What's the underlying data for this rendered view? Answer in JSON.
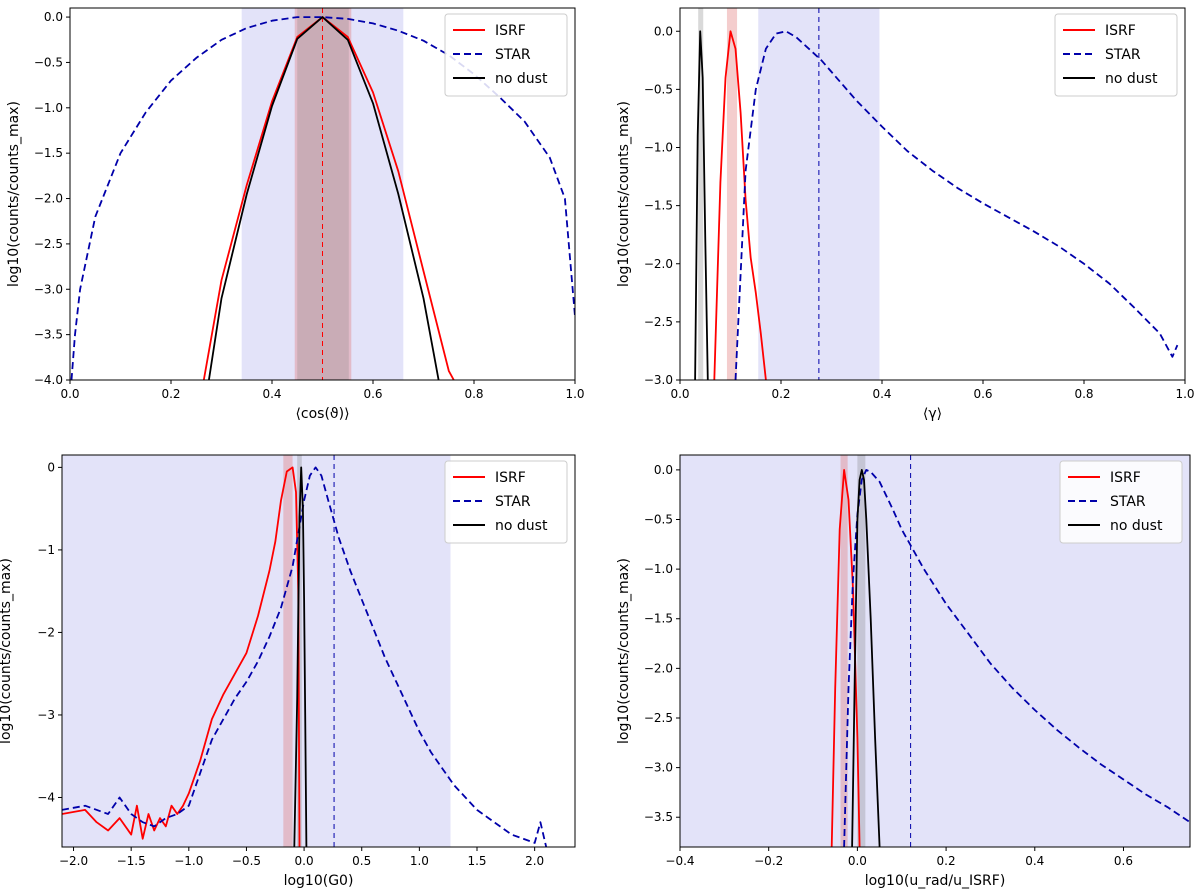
{
  "chart_data": [
    {
      "type": "line",
      "xlabel": "⟨cos(ϑ)⟩",
      "ylabel": "log10(counts/counts_max)",
      "xlim": [
        0.0,
        1.0
      ],
      "ylim": [
        -4.0,
        0.1
      ],
      "xticks": [
        0.0,
        0.2,
        0.4,
        0.6,
        0.8,
        1.0
      ],
      "xtick_labels": [
        "0.0",
        "0.2",
        "0.4",
        "0.6",
        "0.8",
        "1.0"
      ],
      "yticks": [
        0.0,
        -0.5,
        -1.0,
        -1.5,
        -2.0,
        -2.5,
        -3.0,
        -3.5,
        -4.0
      ],
      "ytick_labels": [
        "0.0",
        "−0.5",
        "−1.0",
        "−1.5",
        "−2.0",
        "−2.5",
        "−3.0",
        "−3.5",
        "−4.0"
      ],
      "legend": "top-right",
      "bands": [
        {
          "x0": 0.34,
          "x1": 0.66,
          "color": "#b8b8f0",
          "opacity": 0.4
        },
        {
          "x0": 0.445,
          "x1": 0.557,
          "color": "#e07070",
          "opacity": 0.35
        },
        {
          "x0": 0.45,
          "x1": 0.552,
          "color": "#808080",
          "opacity": 0.25
        }
      ],
      "vlines": [
        {
          "x": 0.5,
          "color": "#0000aa",
          "dash": "5,4"
        },
        {
          "x": 0.5,
          "color": "#ff0000",
          "dash": "5,4"
        }
      ],
      "series": [
        {
          "name": "ISRF",
          "color": "#ff0000",
          "dash": "",
          "x": [
            0.265,
            0.3,
            0.35,
            0.4,
            0.45,
            0.5,
            0.55,
            0.6,
            0.65,
            0.7,
            0.75,
            0.76
          ],
          "y": [
            -4.0,
            -2.9,
            -1.85,
            -0.93,
            -0.22,
            0.0,
            -0.22,
            -0.83,
            -1.7,
            -2.8,
            -3.9,
            -4.0
          ]
        },
        {
          "name": "STAR",
          "color": "#0000aa",
          "dash": "7,4",
          "x": [
            0.003,
            0.01,
            0.02,
            0.05,
            0.1,
            0.15,
            0.2,
            0.25,
            0.3,
            0.35,
            0.4,
            0.45,
            0.5,
            0.55,
            0.6,
            0.65,
            0.7,
            0.75,
            0.8,
            0.85,
            0.9,
            0.95,
            0.98,
            1.0
          ],
          "y": [
            -4.0,
            -3.5,
            -3.0,
            -2.2,
            -1.5,
            -1.05,
            -0.7,
            -0.45,
            -0.25,
            -0.12,
            -0.04,
            0.0,
            0.0,
            -0.02,
            -0.07,
            -0.15,
            -0.26,
            -0.42,
            -0.63,
            -0.88,
            -1.15,
            -1.55,
            -2.0,
            -3.3
          ]
        },
        {
          "name": "no dust",
          "color": "#000000",
          "dash": "",
          "x": [
            0.275,
            0.3,
            0.35,
            0.4,
            0.45,
            0.5,
            0.55,
            0.6,
            0.65,
            0.7,
            0.72,
            0.73
          ],
          "y": [
            -4.0,
            -3.1,
            -1.95,
            -0.98,
            -0.24,
            0.0,
            -0.25,
            -0.95,
            -1.95,
            -3.1,
            -3.7,
            -4.0
          ]
        }
      ]
    },
    {
      "type": "line",
      "xlabel": "⟨γ⟩",
      "ylabel": "log10(counts/counts_max)",
      "xlim": [
        0.0,
        1.0
      ],
      "ylim": [
        -3.0,
        0.2
      ],
      "xticks": [
        0.0,
        0.2,
        0.4,
        0.6,
        0.8,
        1.0
      ],
      "xtick_labels": [
        "0.0",
        "0.2",
        "0.4",
        "0.6",
        "0.8",
        "1.0"
      ],
      "yticks": [
        0.0,
        -0.5,
        -1.0,
        -1.5,
        -2.0,
        -2.5,
        -3.0
      ],
      "ytick_labels": [
        "0.0",
        "−0.5",
        "−1.0",
        "−1.5",
        "−2.0",
        "−2.5",
        "−3.0"
      ],
      "legend": "top-right",
      "bands": [
        {
          "x0": 0.155,
          "x1": 0.395,
          "color": "#b8b8f0",
          "opacity": 0.4
        },
        {
          "x0": 0.093,
          "x1": 0.113,
          "color": "#e07070",
          "opacity": 0.35
        },
        {
          "x0": 0.036,
          "x1": 0.046,
          "color": "#808080",
          "opacity": 0.3
        }
      ],
      "vlines": [
        {
          "x": 0.275,
          "color": "#0000aa",
          "dash": "5,4"
        }
      ],
      "series": [
        {
          "name": "ISRF",
          "color": "#ff0000",
          "dash": "",
          "x": [
            0.068,
            0.08,
            0.09,
            0.1,
            0.11,
            0.12,
            0.13,
            0.14,
            0.15,
            0.16,
            0.17
          ],
          "y": [
            -3.0,
            -1.3,
            -0.4,
            0.0,
            -0.15,
            -0.7,
            -1.45,
            -1.95,
            -2.25,
            -2.6,
            -3.0
          ]
        },
        {
          "name": "STAR",
          "color": "#0000aa",
          "dash": "7,4",
          "x": [
            0.11,
            0.13,
            0.15,
            0.17,
            0.19,
            0.21,
            0.23,
            0.25,
            0.28,
            0.3,
            0.35,
            0.4,
            0.45,
            0.5,
            0.55,
            0.6,
            0.65,
            0.7,
            0.75,
            0.8,
            0.85,
            0.9,
            0.95,
            0.975,
            0.985
          ],
          "y": [
            -3.0,
            -1.2,
            -0.5,
            -0.15,
            -0.02,
            0.0,
            -0.05,
            -0.13,
            -0.25,
            -0.35,
            -0.6,
            -0.82,
            -1.03,
            -1.2,
            -1.35,
            -1.48,
            -1.6,
            -1.72,
            -1.85,
            -2.0,
            -2.17,
            -2.38,
            -2.6,
            -2.8,
            -2.7
          ]
        },
        {
          "name": "no dust",
          "color": "#000000",
          "dash": "",
          "x": [
            0.03,
            0.035,
            0.04,
            0.045,
            0.05,
            0.055
          ],
          "y": [
            -3.0,
            -0.9,
            0.0,
            -0.4,
            -1.8,
            -3.0
          ]
        }
      ]
    },
    {
      "type": "line",
      "xlabel": "log10(G0)",
      "ylabel": "log10(counts/counts_max)",
      "xlim": [
        -2.1,
        2.35
      ],
      "ylim": [
        -4.6,
        0.15
      ],
      "xticks": [
        -2.0,
        -1.5,
        -1.0,
        -0.5,
        0.0,
        0.5,
        1.0,
        1.5,
        2.0
      ],
      "xtick_labels": [
        "−2.0",
        "−1.5",
        "−1.0",
        "−0.5",
        "0.0",
        "0.5",
        "1.0",
        "1.5",
        "2.0"
      ],
      "yticks": [
        0,
        -1,
        -2,
        -3,
        -4
      ],
      "ytick_labels": [
        "0",
        "−1",
        "−2",
        "−3",
        "−4"
      ],
      "legend": "top-right",
      "bands": [
        {
          "x0": -2.1,
          "x1": 1.27,
          "color": "#b8b8f0",
          "opacity": 0.4
        },
        {
          "x0": -0.18,
          "x1": -0.1,
          "color": "#e07070",
          "opacity": 0.35
        },
        {
          "x0": -0.06,
          "x1": -0.02,
          "color": "#808080",
          "opacity": 0.3
        }
      ],
      "vlines": [
        {
          "x": 0.26,
          "color": "#0000aa",
          "dash": "5,4"
        }
      ],
      "series": [
        {
          "name": "ISRF",
          "color": "#ff0000",
          "dash": "",
          "x": [
            -2.1,
            -1.9,
            -1.8,
            -1.7,
            -1.6,
            -1.5,
            -1.45,
            -1.4,
            -1.35,
            -1.3,
            -1.25,
            -1.2,
            -1.15,
            -1.1,
            -1.05,
            -1.0,
            -0.9,
            -0.8,
            -0.7,
            -0.6,
            -0.5,
            -0.4,
            -0.3,
            -0.25,
            -0.2,
            -0.15,
            -0.1,
            -0.07,
            -0.05,
            -0.04
          ],
          "y": [
            -4.2,
            -4.15,
            -4.3,
            -4.4,
            -4.25,
            -4.45,
            -4.1,
            -4.5,
            -4.2,
            -4.4,
            -4.25,
            -4.35,
            -4.1,
            -4.2,
            -4.1,
            -3.95,
            -3.55,
            -3.05,
            -2.75,
            -2.5,
            -2.25,
            -1.8,
            -1.25,
            -0.9,
            -0.4,
            -0.05,
            0.0,
            -0.3,
            -1.5,
            -4.6
          ]
        },
        {
          "name": "STAR",
          "color": "#0000aa",
          "dash": "7,4",
          "x": [
            -2.1,
            -1.9,
            -1.7,
            -1.6,
            -1.5,
            -1.4,
            -1.3,
            -1.2,
            -1.1,
            -1.0,
            -0.9,
            -0.8,
            -0.7,
            -0.6,
            -0.5,
            -0.4,
            -0.3,
            -0.2,
            -0.1,
            -0.05,
            0.0,
            0.05,
            0.1,
            0.15,
            0.2,
            0.3,
            0.4,
            0.5,
            0.6,
            0.7,
            0.8,
            0.9,
            1.0,
            1.1,
            1.2,
            1.3,
            1.4,
            1.5,
            1.6,
            1.7,
            1.8,
            1.9,
            2.0,
            2.05,
            2.1
          ],
          "y": [
            -4.15,
            -4.1,
            -4.2,
            -4.0,
            -4.2,
            -4.3,
            -4.35,
            -4.25,
            -4.2,
            -4.1,
            -3.7,
            -3.3,
            -3.05,
            -2.8,
            -2.6,
            -2.35,
            -2.05,
            -1.7,
            -1.2,
            -0.8,
            -0.4,
            -0.1,
            0.0,
            -0.1,
            -0.35,
            -0.85,
            -1.25,
            -1.6,
            -1.95,
            -2.3,
            -2.6,
            -2.9,
            -3.2,
            -3.45,
            -3.65,
            -3.85,
            -4.0,
            -4.15,
            -4.25,
            -4.35,
            -4.45,
            -4.5,
            -4.55,
            -4.3,
            -4.6
          ]
        },
        {
          "name": "no dust",
          "color": "#000000",
          "dash": "",
          "x": [
            -0.085,
            -0.06,
            -0.04,
            -0.025,
            -0.01,
            0.0,
            0.01,
            0.02
          ],
          "y": [
            -4.6,
            -2.8,
            -0.6,
            0.0,
            -0.5,
            -1.6,
            -3.0,
            -4.6
          ]
        }
      ]
    },
    {
      "type": "line",
      "xlabel": "log10(u_rad/u_ISRF)",
      "ylabel": "log10(counts/counts_max)",
      "xlim": [
        -0.4,
        0.75
      ],
      "ylim": [
        -3.8,
        0.15
      ],
      "xticks": [
        -0.4,
        -0.2,
        0.0,
        0.2,
        0.4,
        0.6
      ],
      "xtick_labels": [
        "−0.4",
        "−0.2",
        "0.0",
        "0.2",
        "0.4",
        "0.6"
      ],
      "yticks": [
        0.0,
        -0.5,
        -1.0,
        -1.5,
        -2.0,
        -2.5,
        -3.0,
        -3.5
      ],
      "ytick_labels": [
        "0.0",
        "−0.5",
        "−1.0",
        "−1.5",
        "−2.0",
        "−2.5",
        "−3.0",
        "−3.5"
      ],
      "legend": "top-right",
      "bands": [
        {
          "x0": -0.4,
          "x1": 0.75,
          "color": "#b8b8f0",
          "opacity": 0.4
        },
        {
          "x0": -0.038,
          "x1": -0.022,
          "color": "#e07070",
          "opacity": 0.35
        },
        {
          "x0": 0.0,
          "x1": 0.018,
          "color": "#808080",
          "opacity": 0.3
        }
      ],
      "vlines": [
        {
          "x": 0.12,
          "color": "#0000aa",
          "dash": "5,4"
        }
      ],
      "series": [
        {
          "name": "ISRF",
          "color": "#ff0000",
          "dash": "",
          "x": [
            -0.058,
            -0.05,
            -0.04,
            -0.03,
            -0.02,
            -0.01,
            0.0,
            0.005
          ],
          "y": [
            -3.8,
            -2.2,
            -0.6,
            0.0,
            -0.3,
            -1.2,
            -2.7,
            -3.8
          ]
        },
        {
          "name": "STAR",
          "color": "#0000aa",
          "dash": "7,4",
          "x": [
            -0.03,
            -0.02,
            -0.01,
            0.0,
            0.01,
            0.02,
            0.03,
            0.05,
            0.08,
            0.1,
            0.15,
            0.2,
            0.25,
            0.3,
            0.35,
            0.4,
            0.45,
            0.5,
            0.55,
            0.6,
            0.65,
            0.7,
            0.75
          ],
          "y": [
            -3.8,
            -2.2,
            -1.1,
            -0.45,
            -0.1,
            0.0,
            -0.02,
            -0.12,
            -0.4,
            -0.6,
            -1.0,
            -1.35,
            -1.65,
            -1.95,
            -2.2,
            -2.42,
            -2.62,
            -2.8,
            -2.97,
            -3.12,
            -3.27,
            -3.4,
            -3.55
          ]
        },
        {
          "name": "no dust",
          "color": "#000000",
          "dash": "",
          "x": [
            -0.012,
            -0.005,
            0.0,
            0.005,
            0.01,
            0.015,
            0.02,
            0.03,
            0.04,
            0.05
          ],
          "y": [
            -3.8,
            -1.8,
            -0.5,
            -0.1,
            0.0,
            -0.1,
            -0.5,
            -1.5,
            -2.7,
            -3.8
          ]
        }
      ]
    }
  ]
}
